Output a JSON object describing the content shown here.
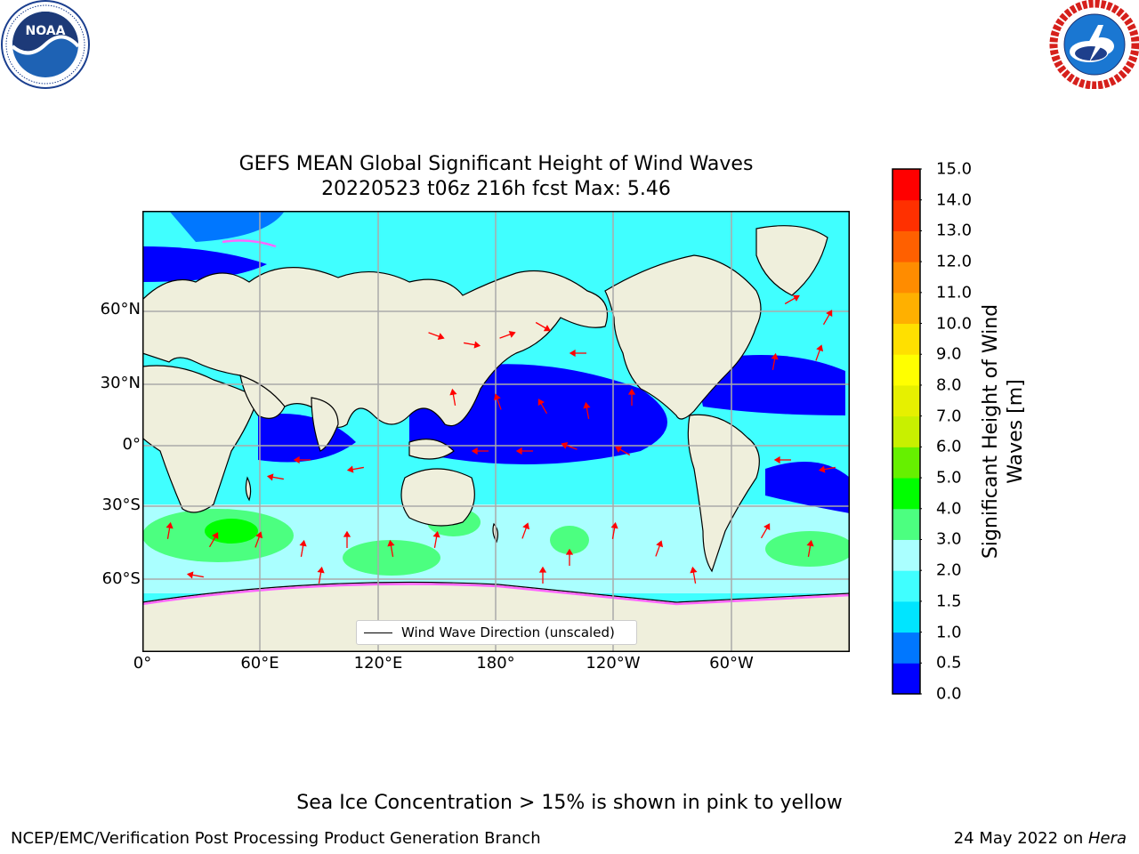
{
  "logos": {
    "left": {
      "name": "NOAA",
      "ring_text": "NATIONAL OCEANIC AND ATMOSPHERIC ADMINISTRATION · U.S. DEPARTMENT OF COMMERCE"
    },
    "right": {
      "name": "NATIONAL WEATHER SERVICE"
    }
  },
  "title_line1": "GEFS MEAN Global Significant Height of Wind Waves",
  "title_line2": "20220523 t06z 216h fcst   Max: 5.46",
  "map": {
    "lat_labels": [
      "60°N",
      "30°N",
      "0°",
      "30°S",
      "60°S"
    ],
    "lon_labels": [
      "0°",
      "60°E",
      "120°E",
      "180°",
      "120°W",
      "60°W"
    ],
    "land_color": "#efefdc",
    "arrow_color": "#ff0000"
  },
  "legend": {
    "label": "Wind Wave Direction (unscaled)"
  },
  "colorbar": {
    "label_line1": "Significant Height of Wind",
    "label_line2": "Waves [m]",
    "ticks": [
      "0.0",
      "0.5",
      "1.0",
      "1.5",
      "2.0",
      "3.0",
      "4.0",
      "5.0",
      "6.0",
      "7.0",
      "8.0",
      "9.0",
      "10.0",
      "11.0",
      "12.0",
      "13.0",
      "14.0",
      "15.0"
    ],
    "colors": [
      "#0000ff",
      "#0077ff",
      "#00e5ff",
      "#40ffff",
      "#aaffff",
      "#4cff80",
      "#00ff00",
      "#66f000",
      "#c8f000",
      "#e6f000",
      "#ffff00",
      "#ffe000",
      "#ffb000",
      "#ff8c00",
      "#ff6000",
      "#ff3000",
      "#ff0000"
    ]
  },
  "sea_ice_note": "Sea Ice Concentration > 15% is shown in pink to yellow",
  "footer_left": "NCEP/EMC/Verification Post Processing Product Generation Branch",
  "footer_right_prefix": "24 May 2022 on ",
  "footer_right_italic": "Hera"
}
